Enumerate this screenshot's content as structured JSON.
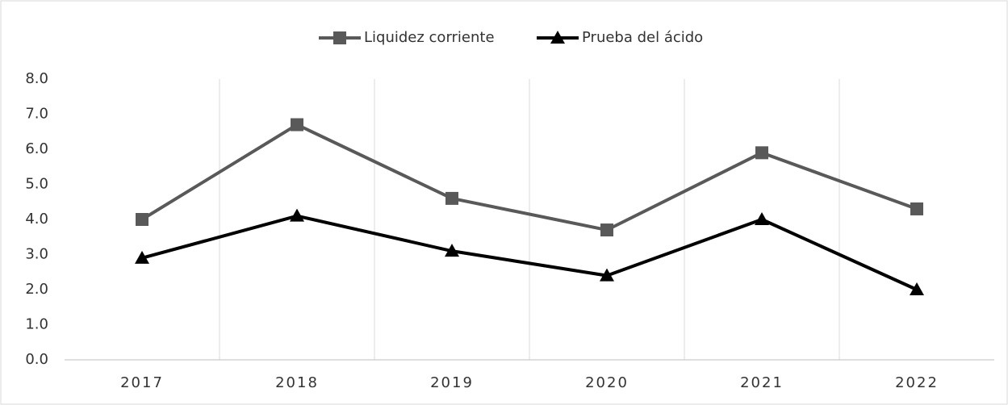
{
  "chart_data": {
    "type": "line",
    "categories": [
      "2017",
      "2018",
      "2019",
      "2020",
      "2021",
      "2022"
    ],
    "series": [
      {
        "name": "Liquidez corriente",
        "color": "#595959",
        "marker": "square",
        "values": [
          4.0,
          6.7,
          4.6,
          3.7,
          5.9,
          4.3
        ]
      },
      {
        "name": "Prueba del ácido",
        "color": "#000000",
        "marker": "triangle",
        "values": [
          2.9,
          4.1,
          3.1,
          2.4,
          4.0,
          2.0
        ]
      }
    ],
    "ylim": [
      0,
      8
    ],
    "yticks": [
      {
        "value": 0,
        "label": "0.0"
      },
      {
        "value": 1,
        "label": "1.0"
      },
      {
        "value": 2,
        "label": "2.0"
      },
      {
        "value": 3,
        "label": "3.0"
      },
      {
        "value": 4,
        "label": "4.0"
      },
      {
        "value": 5,
        "label": "5.0"
      },
      {
        "value": 6,
        "label": "6.0"
      },
      {
        "value": 7,
        "label": "7.0"
      },
      {
        "value": 8,
        "label": "8.0"
      }
    ],
    "grid": false,
    "legend": "top"
  }
}
